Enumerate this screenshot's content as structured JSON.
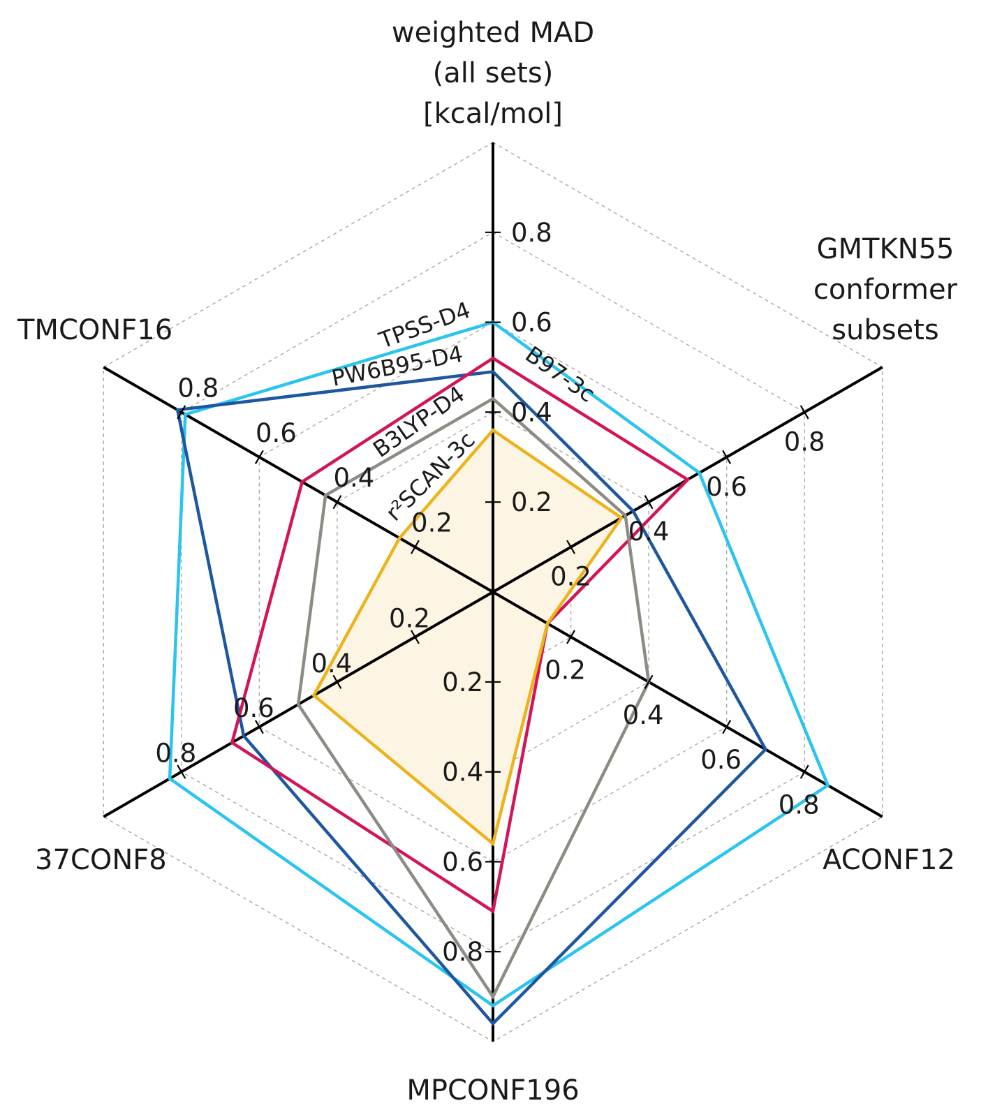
{
  "chart_data": {
    "type": "radar",
    "axes": [
      {
        "key": "weighted_mad",
        "label": [
          "weighted MAD",
          "(all sets)",
          "[kcal/mol]"
        ],
        "max": 1.0,
        "ticks": [
          {
            "value": 0.2,
            "label": "0.2"
          },
          {
            "value": 0.4,
            "label": "0.4"
          },
          {
            "value": 0.6,
            "label": "0.6"
          },
          {
            "value": 0.8,
            "label": "0.8"
          }
        ]
      },
      {
        "key": "gmtkn55_conformer",
        "label": [
          "GMTKN55",
          "conformer",
          "subsets"
        ],
        "max": 1.0,
        "ticks": [
          {
            "value": 0.2,
            "label": "0.2"
          },
          {
            "value": 0.4,
            "label": "0.4"
          },
          {
            "value": 0.6,
            "label": "0.6"
          },
          {
            "value": 0.8,
            "label": "0.8"
          }
        ]
      },
      {
        "key": "aconf12",
        "label": [
          "ACONF12"
        ],
        "max": 1.0,
        "ticks": [
          {
            "value": 0.2,
            "label": "0.2"
          },
          {
            "value": 0.4,
            "label": "0.4"
          },
          {
            "value": 0.6,
            "label": "0.6"
          },
          {
            "value": 0.8,
            "label": "0.8"
          }
        ]
      },
      {
        "key": "mpconf196",
        "label": [
          "MPCONF196"
        ],
        "max": 1.0,
        "ticks": [
          {
            "value": 0.2,
            "label": "0.2"
          },
          {
            "value": 0.4,
            "label": "0.4"
          },
          {
            "value": 0.6,
            "label": "0.6"
          },
          {
            "value": 0.8,
            "label": "0.8"
          }
        ]
      },
      {
        "key": "37conf8",
        "label": [
          "37CONF8"
        ],
        "max": 1.0,
        "ticks": [
          {
            "value": 0.2,
            "label": "0.2"
          },
          {
            "value": 0.4,
            "label": "0.4"
          },
          {
            "value": 0.6,
            "label": "0.6"
          },
          {
            "value": 0.8,
            "label": "0.8"
          }
        ]
      },
      {
        "key": "tmconf16",
        "label": [
          "TMCONF16"
        ],
        "max": 1.0,
        "ticks": [
          {
            "value": 0.2,
            "label": "0.2"
          },
          {
            "value": 0.4,
            "label": "0.4"
          },
          {
            "value": 0.6,
            "label": "0.6"
          },
          {
            "value": 0.8,
            "label": "0.8"
          }
        ]
      }
    ],
    "grid": {
      "levels": [
        0.2,
        0.4,
        0.6,
        0.8,
        1.0
      ],
      "style": "dashed"
    },
    "series": [
      {
        "name": "TPSS-D4",
        "color": "#29c4ef",
        "values": [
          0.6,
          0.53,
          0.86,
          0.92,
          0.83,
          0.79
        ]
      },
      {
        "name": "PW6B95-D4",
        "color": "#1c57a0",
        "values": [
          0.49,
          0.36,
          0.7,
          0.96,
          0.64,
          0.81
        ]
      },
      {
        "name": "B97-3c",
        "color": "#d4145a",
        "values": [
          0.52,
          0.5,
          0.14,
          0.71,
          0.67,
          0.49
        ]
      },
      {
        "name": "B3LYP-D4",
        "color": "#8c8c84",
        "values": [
          0.43,
          0.34,
          0.4,
          0.9,
          0.5,
          0.43
        ]
      },
      {
        "name": "r²SCAN-3c",
        "color": "#ecb31b",
        "fill": "#fdf5e4",
        "values": [
          0.36,
          0.33,
          0.14,
          0.56,
          0.46,
          0.24
        ]
      }
    ]
  }
}
